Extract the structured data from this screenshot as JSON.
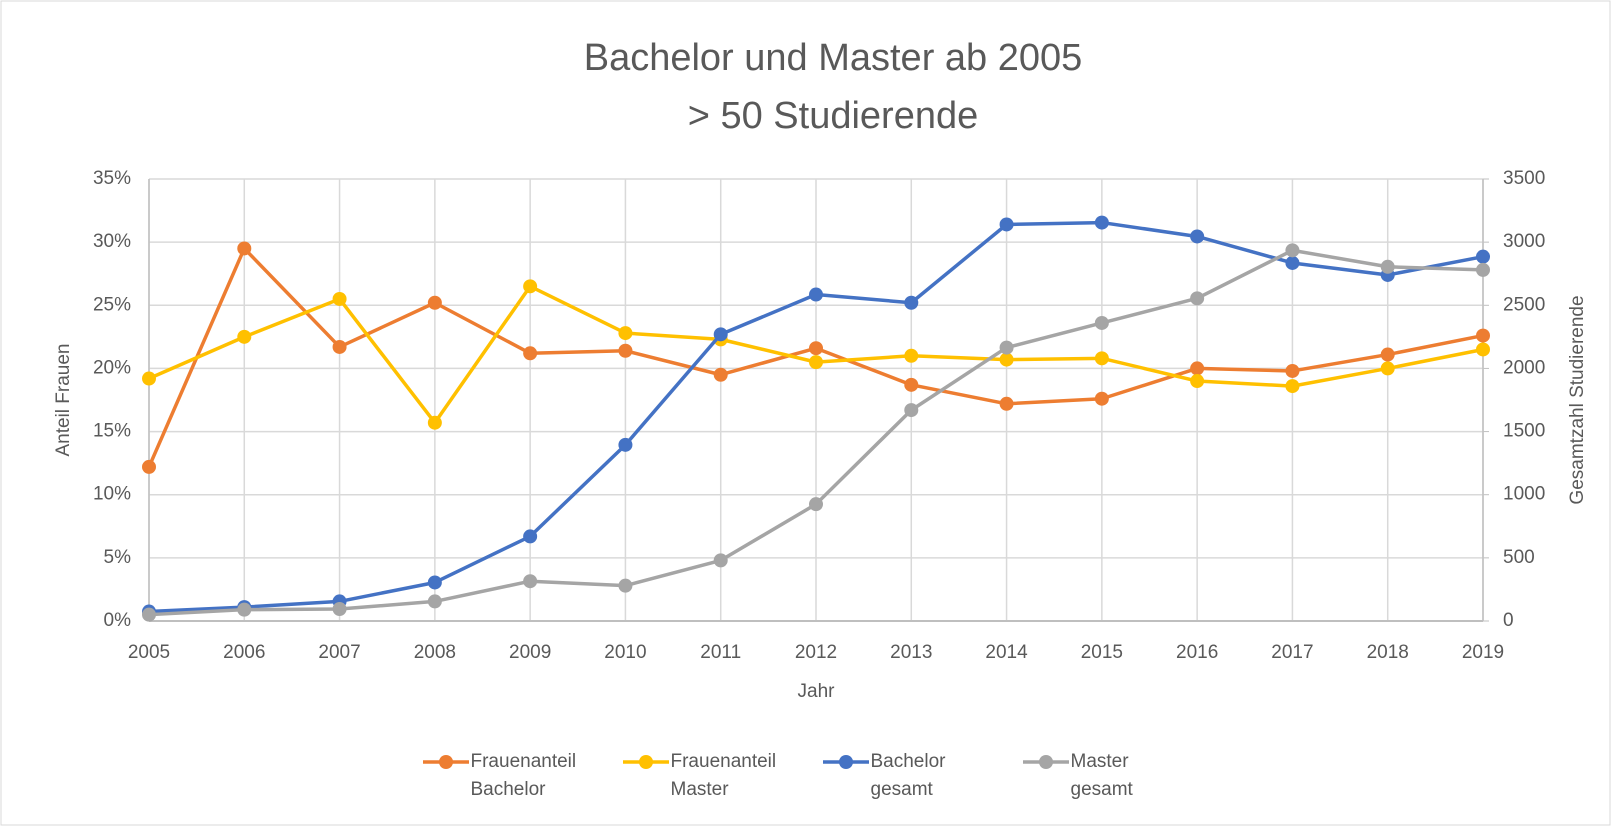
{
  "chart_data": {
    "type": "line",
    "title": "Bachelor und Master ab 2005",
    "subtitle": "> 50 Studierende",
    "x_label": "Jahr",
    "y_label": "Anteil Frauen",
    "y2_label": "Gesamtzahl Studierende",
    "x": [
      2005,
      2006,
      2007,
      2008,
      2009,
      2010,
      2011,
      2012,
      2013,
      2014,
      2015,
      2016,
      2017,
      2018,
      2019
    ],
    "xlim": [
      2005,
      2019
    ],
    "xticks": [
      2005,
      2006,
      2007,
      2008,
      2009,
      2010,
      2011,
      2012,
      2013,
      2014,
      2015,
      2016,
      2017,
      2018,
      2019
    ],
    "ylim": [
      0,
      35
    ],
    "yticks": [
      {
        "value": 0,
        "label": "0%"
      },
      {
        "value": 5,
        "label": "5%"
      },
      {
        "value": 10,
        "label": "10%"
      },
      {
        "value": 15,
        "label": "15%"
      },
      {
        "value": 20,
        "label": "20%"
      },
      {
        "value": 25,
        "label": "25%"
      },
      {
        "value": 30,
        "label": "30%"
      },
      {
        "value": 35,
        "label": "35%"
      }
    ],
    "y2lim": [
      0,
      3500
    ],
    "y2ticks": [
      0,
      500,
      1000,
      1500,
      2000,
      2500,
      3000,
      3500
    ],
    "grid": true,
    "legend": "bottom",
    "series": [
      {
        "name": "Frauenanteil Bachelor",
        "color": "#ed7d31",
        "values": [
          12.2,
          29.5,
          21.7,
          25.2,
          21.2,
          21.4,
          19.5,
          21.6,
          18.7,
          17.2,
          17.6,
          20.0,
          19.8,
          21.1,
          22.6
        ]
      },
      {
        "name": "Frauenanteil Master",
        "color": "#ffc000",
        "values": [
          19.2,
          22.5,
          25.5,
          15.7,
          26.5,
          22.8,
          22.3,
          20.5,
          21.0,
          20.7,
          20.8,
          19.0,
          18.6,
          20.0,
          21.5
        ]
      },
      {
        "name": "Bachelor gesamt",
        "color": "#4472c4",
        "axis": "y2",
        "values": [
          75,
          110,
          155,
          305,
          670,
          1395,
          2270,
          2585,
          2520,
          3140,
          3155,
          3045,
          2835,
          2740,
          2885
        ]
      },
      {
        "name": "Master gesamt",
        "color": "#a5a5a5",
        "axis": "y2",
        "values": [
          50,
          90,
          95,
          155,
          315,
          280,
          480,
          925,
          1670,
          2165,
          2360,
          2555,
          2935,
          2805,
          2780
        ]
      }
    ]
  }
}
